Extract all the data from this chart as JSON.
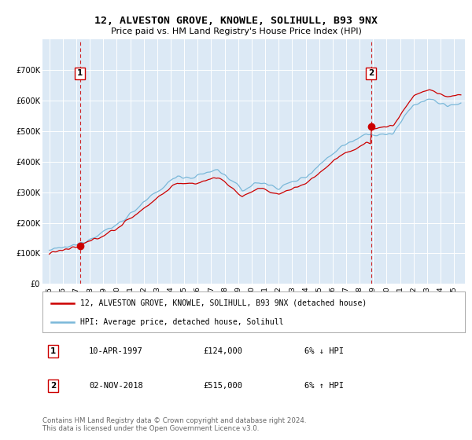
{
  "title": "12, ALVESTON GROVE, KNOWLE, SOLIHULL, B93 9NX",
  "subtitle": "Price paid vs. HM Land Registry's House Price Index (HPI)",
  "sale1_date": "10-APR-1997",
  "sale1_price": 124000,
  "sale1_label": "6% ↓ HPI",
  "sale2_date": "02-NOV-2018",
  "sale2_price": 515000,
  "sale2_label": "6% ↑ HPI",
  "legend_line1": "12, ALVESTON GROVE, KNOWLE, SOLIHULL, B93 9NX (detached house)",
  "legend_line2": "HPI: Average price, detached house, Solihull",
  "footer": "Contains HM Land Registry data © Crown copyright and database right 2024.\nThis data is licensed under the Open Government Licence v3.0.",
  "hpi_color": "#7ab8d9",
  "price_color": "#cc0000",
  "vline_color": "#cc0000",
  "background_color": "#dce9f5",
  "ylim": [
    0,
    800000
  ],
  "yticks": [
    0,
    100000,
    200000,
    300000,
    400000,
    500000,
    600000,
    700000
  ],
  "xlim_start": 1994.5,
  "xlim_end": 2025.8,
  "sale1_t": 1997.28,
  "sale2_t": 2018.84
}
